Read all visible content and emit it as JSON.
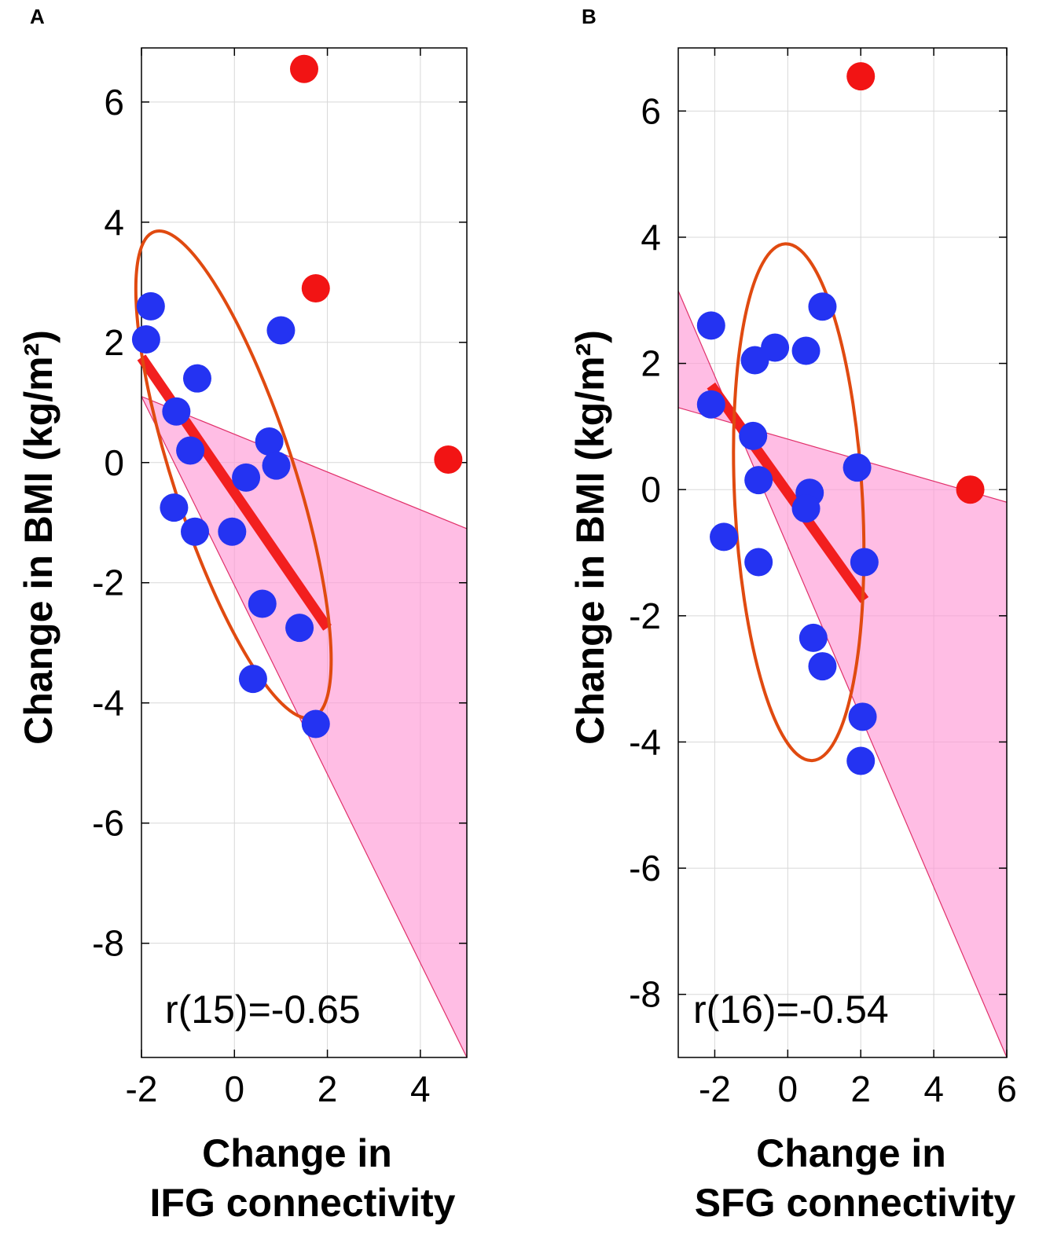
{
  "chart_data": [
    {
      "panel": "A",
      "type": "scatter",
      "xlabel_lines": [
        "Change in",
        "IFG connectivity"
      ],
      "ylabel": "Change in BMI (kg/m²)",
      "xlim": [
        -2,
        5
      ],
      "ylim": [
        -9.9,
        6.9
      ],
      "xticks": [
        -2,
        0,
        2,
        4
      ],
      "yticks": [
        6,
        4,
        2,
        0,
        -2,
        -4,
        -6,
        -8
      ],
      "annotation": "r(15)=-0.65",
      "points_blue": [
        [
          -1.8,
          2.6
        ],
        [
          -1.9,
          2.05
        ],
        [
          -1.25,
          0.85
        ],
        [
          -0.8,
          1.4
        ],
        [
          -0.95,
          0.2
        ],
        [
          -1.3,
          -0.75
        ],
        [
          -0.85,
          -1.15
        ],
        [
          -0.05,
          -1.15
        ],
        [
          0.25,
          -0.25
        ],
        [
          0.75,
          0.35
        ],
        [
          0.9,
          -0.05
        ],
        [
          1.0,
          2.2
        ],
        [
          0.6,
          -2.35
        ],
        [
          1.4,
          -2.75
        ],
        [
          0.4,
          -3.6
        ],
        [
          1.75,
          -4.35
        ]
      ],
      "points_red": [
        [
          1.5,
          6.55
        ],
        [
          1.75,
          2.9
        ],
        [
          4.6,
          0.05
        ]
      ],
      "fit_line": [
        [
          -2,
          1.75
        ],
        [
          2,
          -2.75
        ]
      ],
      "band_upper": [
        [
          -2,
          1.1
        ],
        [
          5,
          -1.1
        ]
      ],
      "band_lower": [
        [
          -2,
          1.1
        ],
        [
          5,
          -9.9
        ]
      ],
      "ellipse": {
        "cx": -0.02,
        "cy": -0.2,
        "rx": 1.3,
        "ry": 4.25,
        "rotation": -18
      }
    },
    {
      "panel": "B",
      "type": "scatter",
      "xlabel_lines": [
        "Change in",
        "SFG connectivity"
      ],
      "ylabel": "Change in BMI (kg/m²)",
      "xlim": [
        -3,
        6
      ],
      "ylim": [
        -9,
        7
      ],
      "xticks": [
        -2,
        0,
        2,
        4,
        6
      ],
      "yticks": [
        6,
        4,
        2,
        0,
        -2,
        -4,
        -6,
        -8
      ],
      "annotation": "r(16)=-0.54",
      "points_blue": [
        [
          -2.1,
          2.6
        ],
        [
          -2.1,
          1.35
        ],
        [
          -0.9,
          2.05
        ],
        [
          -0.35,
          2.25
        ],
        [
          0.5,
          2.2
        ],
        [
          0.95,
          2.9
        ],
        [
          -0.95,
          0.85
        ],
        [
          -0.8,
          0.15
        ],
        [
          0.6,
          -0.05
        ],
        [
          0.5,
          -0.3
        ],
        [
          -1.75,
          -0.75
        ],
        [
          -0.8,
          -1.15
        ],
        [
          1.9,
          0.35
        ],
        [
          2.1,
          -1.15
        ],
        [
          0.7,
          -2.35
        ],
        [
          0.95,
          -2.8
        ],
        [
          2.05,
          -3.6
        ],
        [
          2.0,
          -4.3
        ]
      ],
      "points_red": [
        [
          2.0,
          6.55
        ],
        [
          5.0,
          0.0
        ]
      ],
      "fit_line": [
        [
          -2.1,
          1.65
        ],
        [
          2.1,
          -1.75
        ]
      ],
      "band_upper": [
        [
          -3,
          1.3
        ],
        [
          6,
          -0.2
        ]
      ],
      "band_lower": [
        [
          -3,
          3.15
        ],
        [
          6,
          -9
        ]
      ],
      "ellipse": {
        "cx": 0.3,
        "cy": -0.2,
        "rx": 1.75,
        "ry": 4.1,
        "rotation": -3
      }
    }
  ]
}
